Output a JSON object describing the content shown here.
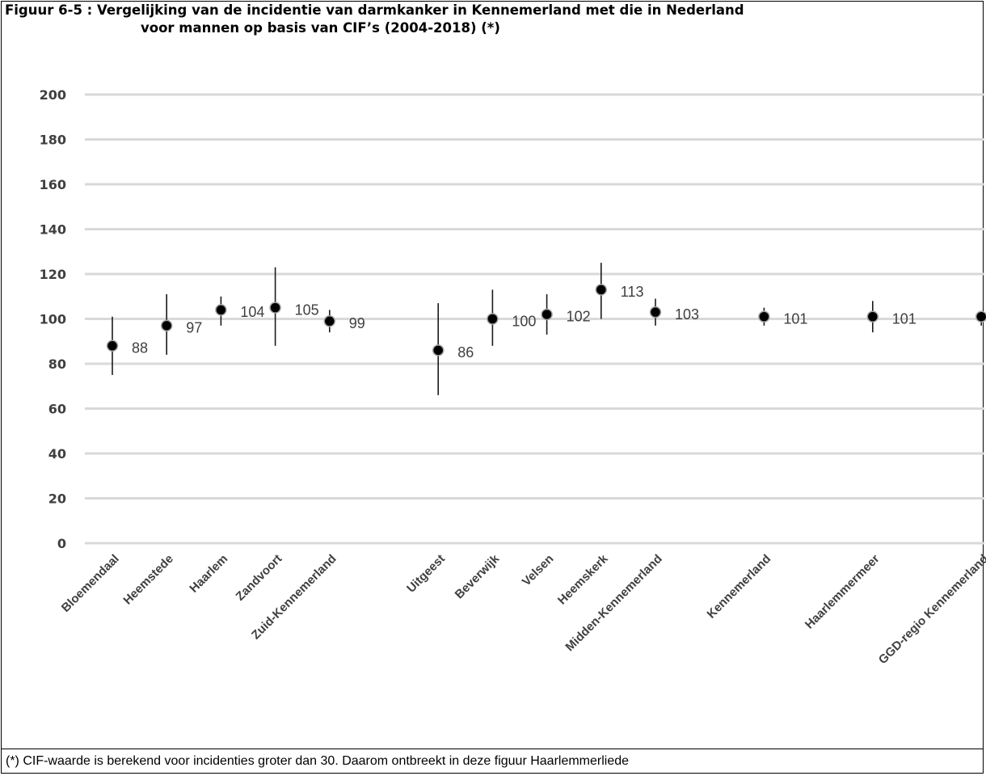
{
  "title_line1": "Figuur 6-5  : Vergelijking van de incidentie van darmkanker in Kennemerland met die in Nederland",
  "title_line2": "voor mannen op basis van CIF’s (2004-2018) (*)",
  "footnote": "(*) CIF-waarde is berekend voor incidenties groter dan 30. Daarom ontbreekt in deze figuur Haarlemmerliede",
  "chart_data": {
    "type": "scatter",
    "title": "Figuur 6-5  : Vergelijking van de incidentie van darmkanker in Kennemerland met die in Nederland voor mannen op basis van CIF’s (2004-2018) (*)",
    "xlabel": "",
    "ylabel": "",
    "ylim": [
      0,
      200
    ],
    "yticks": [
      0,
      20,
      40,
      60,
      80,
      100,
      120,
      140,
      160,
      180,
      200
    ],
    "grid": true,
    "legend": "none",
    "error_bars": true,
    "categories": [
      "Bloemendaal",
      "Heemstede",
      "Haarlem",
      "Zandvoort",
      "Zuid-Kennemerland",
      "",
      "Uitgeest",
      "Beverwijk",
      "Velsen",
      "Heemskerk",
      "Midden-Kennemerland",
      "",
      "Kennemerland",
      "",
      "Haarlemmermeer",
      "",
      "GGD-regio Kennemerland"
    ],
    "values": [
      88,
      97,
      104,
      105,
      99,
      null,
      86,
      100,
      102,
      113,
      103,
      null,
      101,
      null,
      101,
      null,
      101
    ],
    "lower": [
      75,
      84,
      97,
      88,
      94,
      null,
      66,
      88,
      93,
      100,
      97,
      null,
      97,
      null,
      94,
      null,
      97
    ],
    "upper": [
      101,
      111,
      110,
      123,
      104,
      null,
      107,
      113,
      111,
      125,
      109,
      null,
      105,
      null,
      108,
      null,
      103
    ],
    "data_labels": [
      "88",
      "97",
      "104",
      "105",
      "99",
      "",
      "86",
      "100",
      "102",
      "113",
      "103",
      "",
      "101",
      "",
      "101",
      "",
      ""
    ]
  }
}
